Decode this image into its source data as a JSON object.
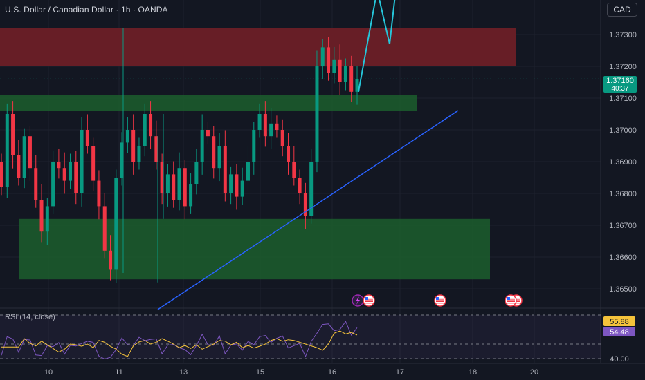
{
  "header": {
    "symbol": "U.S. Dollar / Canadian Dollar",
    "interval": "1h",
    "source": "OANDA",
    "currency_button": "CAD"
  },
  "price_tag": {
    "value": "1.37160",
    "countdown": "40:37"
  },
  "rsi": {
    "title": "RSI (14, close)",
    "rsi_value": "54.48",
    "ma_value": "55.88"
  },
  "colors": {
    "background": "#131722",
    "bull": "#089981",
    "bear": "#f23645",
    "resistance_zone": "#6b1f27",
    "support_zone": "#1c5a2c",
    "trendline": "#2962ff",
    "projection": "#26c6da",
    "rsi_line": "#7e57c2",
    "rsi_ma": "#f5c33b",
    "tag_green": "#089981"
  },
  "event_icons": [
    "lightning-icon",
    "us-flag-icon",
    "us-flag-icon",
    "us-flag-icon"
  ],
  "chart_data": {
    "type": "candlestick",
    "title": "U.S. Dollar / Canadian Dollar · 1h · OANDA",
    "xlabel": "",
    "ylabel": "",
    "price_ticks": [
      "1.37300",
      "1.37200",
      "1.37100",
      "1.37000",
      "1.36900",
      "1.36800",
      "1.36700",
      "1.36600",
      "1.36500"
    ],
    "x_ticks": [
      {
        "label": "10",
        "day": 10
      },
      {
        "label": "11",
        "day": 11
      },
      {
        "label": "13",
        "day": 13
      },
      {
        "label": "15",
        "day": 15
      },
      {
        "label": "16",
        "day": 16
      },
      {
        "label": "17",
        "day": 17
      },
      {
        "label": "18",
        "day": 18
      },
      {
        "label": "20",
        "day": 20
      }
    ],
    "ylim": [
      1.3642,
      1.3746
    ],
    "last_price": 1.3716,
    "zones": [
      {
        "kind": "resistance",
        "top": 1.3732,
        "bottom": 1.372
      },
      {
        "kind": "support",
        "top": 1.3711,
        "bottom": 1.3706
      },
      {
        "kind": "support",
        "top": 1.3672,
        "bottom": 1.3653
      }
    ],
    "trendline": [
      [
        1.3644,
        1.3673
      ],
      [
        1.3706,
        0
      ]
    ],
    "projection": [
      1.3712,
      1.3744,
      1.3727,
      1.375
    ],
    "candle_closes": [
      1.3682,
      1.3705,
      1.3692,
      1.3685,
      1.3698,
      1.3688,
      1.3678,
      1.3668,
      1.3676,
      1.369,
      1.3688,
      1.3684,
      1.369,
      1.368,
      1.37,
      1.3695,
      1.3684,
      1.3676,
      1.3662,
      1.3656,
      1.3685,
      1.3696,
      1.37,
      1.369,
      1.3695,
      1.3705,
      1.3698,
      1.369,
      1.368,
      1.3686,
      1.3678,
      1.3688,
      1.3676,
      1.3683,
      1.369,
      1.37,
      1.3698,
      1.3688,
      1.3695,
      1.368,
      1.3686,
      1.3679,
      1.3684,
      1.369,
      1.37,
      1.3705,
      1.3698,
      1.3702,
      1.37,
      1.3695,
      1.369,
      1.3685,
      1.368,
      1.3673,
      1.369,
      1.372,
      1.3726,
      1.3718,
      1.3722,
      1.3715,
      1.372,
      1.3712,
      1.3716
    ],
    "rsi": {
      "ylim": [
        30,
        70
      ],
      "levels": [
        70,
        50,
        40
      ],
      "last": 54.48,
      "ma_last": 55.88
    },
    "rsi_ticks": [
      "55.88",
      "54.48",
      "40.00"
    ]
  }
}
